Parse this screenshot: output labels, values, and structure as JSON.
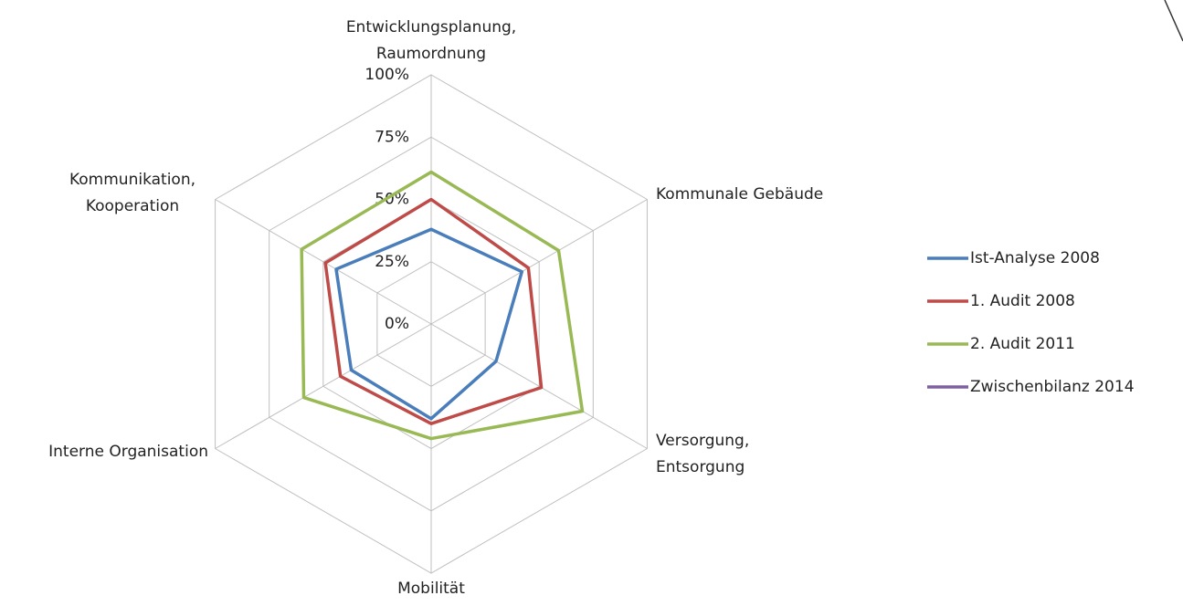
{
  "chart_data": {
    "type": "radar",
    "categories": [
      "Entwicklungsplanung, Raumordnung",
      "Kommunale Gebäude",
      "Versorgung, Entsorgung",
      "Mobilität",
      "Interne Organisation",
      "Kommunikation, Kooperation"
    ],
    "ylim": [
      0,
      100
    ],
    "yticks": [
      {
        "value": 0,
        "label": "0%"
      },
      {
        "value": 25,
        "label": "25%"
      },
      {
        "value": 50,
        "label": "50%"
      },
      {
        "value": 75,
        "label": "75%"
      },
      {
        "value": 100,
        "label": "100%"
      }
    ],
    "grid": true,
    "legend": "right",
    "series": [
      {
        "name": "Ist-Analyse 2008",
        "color": "#4a7ebb",
        "values": [
          38,
          42,
          30,
          38,
          37,
          44
        ]
      },
      {
        "name": "1. Audit 2008",
        "color": "#be4b48",
        "values": [
          50,
          45,
          51,
          40,
          42,
          49
        ]
      },
      {
        "name": "2. Audit 2011",
        "color": "#98b954",
        "values": [
          61,
          59,
          70,
          46,
          59,
          60
        ]
      },
      {
        "name": "Zwischenbilanz 2014",
        "color": "#7d60a0",
        "values": [
          null,
          null,
          null,
          null,
          null,
          null
        ]
      }
    ]
  }
}
